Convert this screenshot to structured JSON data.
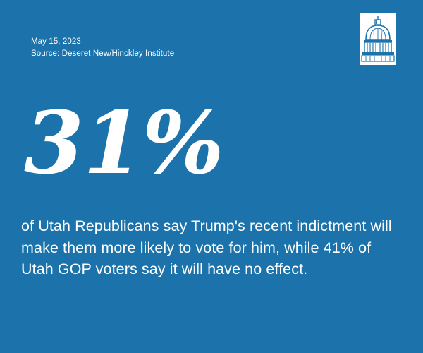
{
  "meta": {
    "date": "May 15, 2023",
    "source": "Source: Deseret New/Hinckley Institute"
  },
  "logo": {
    "icon": "capitol-dome-icon"
  },
  "headline": {
    "stat": "31%"
  },
  "body": {
    "text": "of Utah Republicans say Trump's recent indictment will make them more likely to vote for him, while 41% of Utah GOP voters say it will have no effect."
  },
  "colors": {
    "background": "#1c73ab",
    "foreground": "#ffffff"
  }
}
